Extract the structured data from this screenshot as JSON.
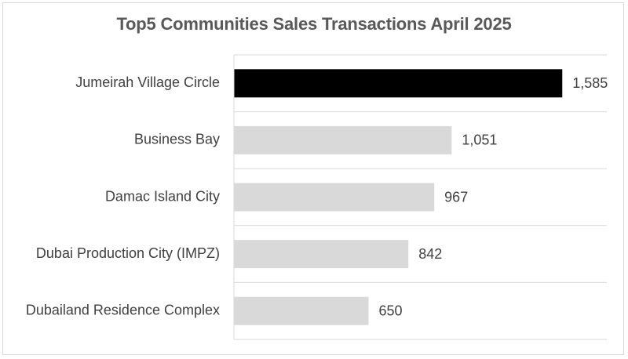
{
  "chart_data": {
    "type": "bar",
    "orientation": "horizontal",
    "title": "Top5 Communities Sales Transactions April 2025",
    "categories": [
      "Jumeirah Village Circle",
      "Business Bay",
      "Damac Island City",
      "Dubai Production City (IMPZ)",
      "Dubailand Residence Complex"
    ],
    "values": [
      1585,
      1051,
      967,
      842,
      650
    ],
    "value_labels": [
      "1,585",
      "1,051",
      "967",
      "842",
      "650"
    ],
    "colors": [
      "#000000",
      "#d9d9d9",
      "#d9d9d9",
      "#d9d9d9",
      "#d9d9d9"
    ],
    "xlim": [
      0,
      1800
    ],
    "grid": "horizontal separators",
    "legend": "none"
  }
}
